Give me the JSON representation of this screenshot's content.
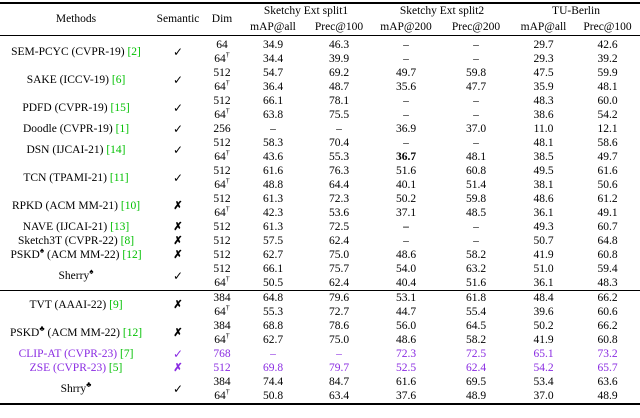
{
  "colors": {
    "citation_green": "#00c000",
    "highlight_purple": "#8a2be2",
    "text_black": "#000000"
  },
  "marks": {
    "check": "✓",
    "cross": "✗"
  },
  "symbols": {
    "dagger": "†"
  },
  "table": {
    "header": {
      "methods": "Methods",
      "semantic": "Semantic",
      "dim": "Dim",
      "groups": [
        {
          "label": "Sketchy Ext split1",
          "cols": [
            "mAP@all",
            "Prec@100"
          ]
        },
        {
          "label": "Sketchy Ext split2",
          "cols": [
            "mAP@200",
            "Prec@200"
          ]
        },
        {
          "label": "TU-Berlin",
          "cols": [
            "mAP@all",
            "Prec@100"
          ]
        }
      ]
    },
    "sections": [
      {
        "methods": [
          {
            "pre": "SEM-PCYC (CVPR-19) ",
            "sup": "",
            "post": "",
            "ref": "[2]",
            "semantic": true,
            "purple": false,
            "rows": [
              {
                "dim": "64",
                "dagger": false,
                "v": [
                  "34.9",
                  "46.3",
                  "–",
                  "–",
                  "29.7",
                  "42.6"
                ],
                "bold": []
              },
              {
                "dim": "64",
                "dagger": true,
                "v": [
                  "34.4",
                  "39.9",
                  "–",
                  "–",
                  "29.3",
                  "39.2"
                ],
                "bold": []
              }
            ]
          },
          {
            "pre": "SAKE (ICCV-19) ",
            "sup": "",
            "post": "",
            "ref": "[6]",
            "semantic": true,
            "purple": false,
            "rows": [
              {
                "dim": "512",
                "dagger": false,
                "v": [
                  "54.7",
                  "69.2",
                  "49.7",
                  "59.8",
                  "47.5",
                  "59.9"
                ],
                "bold": []
              },
              {
                "dim": "64",
                "dagger": true,
                "v": [
                  "36.4",
                  "48.7",
                  "35.6",
                  "47.7",
                  "35.9",
                  "48.1"
                ],
                "bold": []
              }
            ]
          },
          {
            "pre": "PDFD (CVPR-19) ",
            "sup": "",
            "post": "",
            "ref": "[15]",
            "semantic": true,
            "purple": false,
            "rows": [
              {
                "dim": "512",
                "dagger": false,
                "v": [
                  "66.1",
                  "78.1",
                  "–",
                  "–",
                  "48.3",
                  "60.0"
                ],
                "bold": []
              },
              {
                "dim": "64",
                "dagger": true,
                "v": [
                  "63.8",
                  "75.5",
                  "–",
                  "–",
                  "38.6",
                  "54.2"
                ],
                "bold": []
              }
            ]
          },
          {
            "pre": "Doodle (CVPR-19) ",
            "sup": "",
            "post": "",
            "ref": "[1]",
            "semantic": true,
            "purple": false,
            "rows": [
              {
                "dim": "256",
                "dagger": false,
                "v": [
                  "–",
                  "–",
                  "36.9",
                  "37.0",
                  "11.0",
                  "12.1"
                ],
                "bold": []
              }
            ]
          },
          {
            "pre": "DSN (IJCAI-21) ",
            "sup": "",
            "post": "",
            "ref": "[14]",
            "semantic": true,
            "purple": false,
            "rows": [
              {
                "dim": "512",
                "dagger": false,
                "v": [
                  "58.3",
                  "70.4",
                  "–",
                  "–",
                  "48.1",
                  "58.6"
                ],
                "bold": []
              },
              {
                "dim": "64",
                "dagger": true,
                "v": [
                  "43.6",
                  "55.3",
                  "36.7",
                  "48.1",
                  "38.5",
                  "49.7"
                ],
                "bold": [
                  2
                ]
              }
            ]
          },
          {
            "pre": "TCN (TPAMI-21) ",
            "sup": "",
            "post": "",
            "ref": "[11]",
            "semantic": true,
            "purple": false,
            "rows": [
              {
                "dim": "512",
                "dagger": false,
                "v": [
                  "61.6",
                  "76.3",
                  "51.6",
                  "60.8",
                  "49.5",
                  "61.6"
                ],
                "bold": []
              },
              {
                "dim": "64",
                "dagger": true,
                "v": [
                  "48.8",
                  "64.4",
                  "40.1",
                  "51.4",
                  "38.1",
                  "50.6"
                ],
                "bold": []
              }
            ]
          },
          {
            "pre": "RPKD (ACM MM-21) ",
            "sup": "",
            "post": "",
            "ref": "[10]",
            "semantic": false,
            "purple": false,
            "rows": [
              {
                "dim": "512",
                "dagger": false,
                "v": [
                  "61.3",
                  "72.3",
                  "50.2",
                  "59.8",
                  "48.6",
                  "61.2"
                ],
                "bold": []
              },
              {
                "dim": "64",
                "dagger": true,
                "v": [
                  "42.3",
                  "53.6",
                  "37.1",
                  "48.5",
                  "36.1",
                  "49.1"
                ],
                "bold": []
              }
            ]
          },
          {
            "pre": "NAVE (IJCAI-21) ",
            "sup": "",
            "post": "",
            "ref": "[13]",
            "semantic": false,
            "purple": false,
            "rows": [
              {
                "dim": "512",
                "dagger": false,
                "v": [
                  "61.3",
                  "72.5",
                  "–",
                  "–",
                  "49.3",
                  "60.7"
                ],
                "bold": [
                  2
                ]
              }
            ]
          },
          {
            "pre": "Sketch3T (CVPR-22) ",
            "sup": "",
            "post": "",
            "ref": "[8]",
            "semantic": false,
            "purple": false,
            "rows": [
              {
                "dim": "512",
                "dagger": false,
                "v": [
                  "57.5",
                  "62.4",
                  "–",
                  "–",
                  "50.7",
                  "64.8"
                ],
                "bold": []
              }
            ]
          },
          {
            "pre": "PSKD",
            "sup": "♠",
            "post": " (ACM MM-22) ",
            "ref": "[12]",
            "semantic": false,
            "purple": false,
            "rows": [
              {
                "dim": "512",
                "dagger": false,
                "v": [
                  "62.7",
                  "75.0",
                  "48.6",
                  "58.2",
                  "41.9",
                  "60.8"
                ],
                "bold": []
              }
            ]
          },
          {
            "pre": "Sherry",
            "sup": "♠",
            "post": "",
            "ref": "",
            "semantic": true,
            "purple": false,
            "rows": [
              {
                "dim": "512",
                "dagger": false,
                "v": [
                  "66.1",
                  "75.7",
                  "54.0",
                  "63.2",
                  "51.0",
                  "59.4"
                ],
                "bold": []
              },
              {
                "dim": "64",
                "dagger": true,
                "v": [
                  "50.5",
                  "62.4",
                  "40.4",
                  "51.6",
                  "36.1",
                  "48.3"
                ],
                "bold": []
              }
            ]
          }
        ]
      },
      {
        "methods": [
          {
            "pre": "TVT (AAAI-22) ",
            "sup": "",
            "post": "",
            "ref": "[9]",
            "semantic": false,
            "purple": false,
            "rows": [
              {
                "dim": "384",
                "dagger": false,
                "v": [
                  "64.8",
                  "79.6",
                  "53.1",
                  "61.8",
                  "48.4",
                  "66.2"
                ],
                "bold": []
              },
              {
                "dim": "64",
                "dagger": true,
                "v": [
                  "55.3",
                  "72.7",
                  "44.7",
                  "55.4",
                  "39.6",
                  "60.6"
                ],
                "bold": []
              }
            ]
          },
          {
            "pre": "PSKD",
            "sup": "♣",
            "post": " (ACM MM-22) ",
            "ref": "[12]",
            "semantic": false,
            "purple": false,
            "rows": [
              {
                "dim": "384",
                "dagger": false,
                "v": [
                  "68.8",
                  "78.6",
                  "56.0",
                  "64.5",
                  "50.2",
                  "66.2"
                ],
                "bold": []
              },
              {
                "dim": "64",
                "dagger": true,
                "v": [
                  "62.7",
                  "75.0",
                  "48.6",
                  "58.2",
                  "41.9",
                  "60.8"
                ],
                "bold": []
              }
            ]
          },
          {
            "pre": "CLIP-AT (CVPR-23) ",
            "sup": "",
            "post": "",
            "ref": "[7]",
            "semantic": true,
            "purple": true,
            "rows": [
              {
                "dim": "768",
                "dagger": false,
                "v": [
                  "–",
                  "–",
                  "72.3",
                  "72.5",
                  "65.1",
                  "73.2"
                ],
                "bold": []
              }
            ]
          },
          {
            "pre": "ZSE (CVPR-23) ",
            "sup": "",
            "post": "",
            "ref": "[5]",
            "semantic": false,
            "purple": true,
            "rows": [
              {
                "dim": "512",
                "dagger": false,
                "v": [
                  "69.8",
                  "79.7",
                  "52.5",
                  "62.4",
                  "54.2",
                  "65.7"
                ],
                "bold": []
              }
            ]
          },
          {
            "pre": "Shrry",
            "sup": "♣",
            "post": "",
            "ref": "",
            "semantic": true,
            "purple": false,
            "rows": [
              {
                "dim": "384",
                "dagger": false,
                "v": [
                  "74.4",
                  "84.7",
                  "61.6",
                  "69.5",
                  "53.4",
                  "63.6"
                ],
                "bold": []
              },
              {
                "dim": "64",
                "dagger": true,
                "v": [
                  "50.8",
                  "63.4",
                  "37.6",
                  "48.9",
                  "37.0",
                  "48.9"
                ],
                "bold": []
              }
            ]
          }
        ]
      }
    ]
  }
}
